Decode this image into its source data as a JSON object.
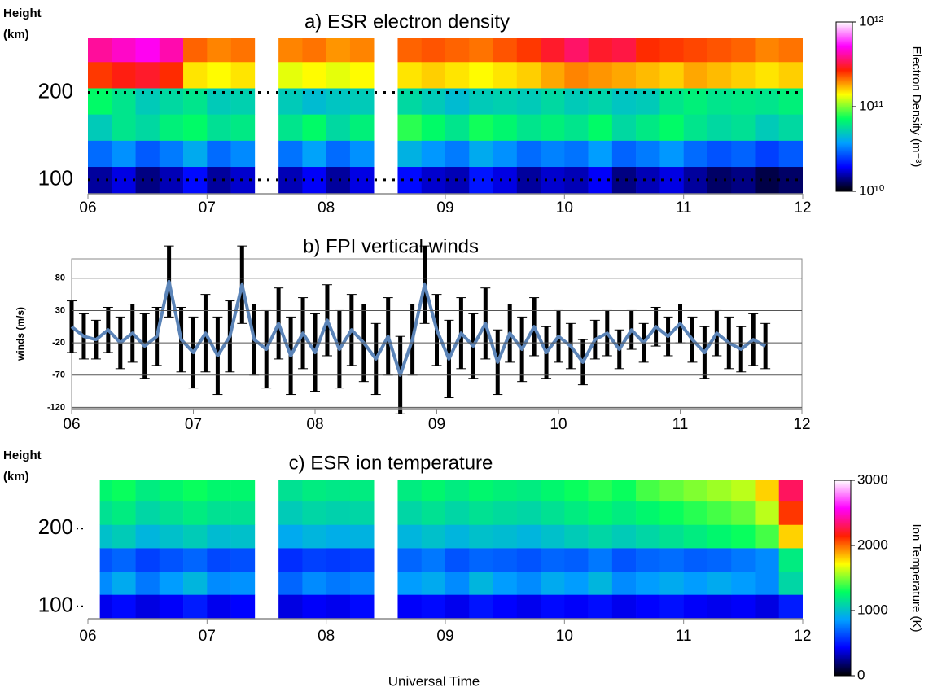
{
  "chart_data": [
    {
      "type": "heatmap",
      "title": "a) ESR electron density",
      "ylabel_lines": [
        "Height",
        "(km)"
      ],
      "x_edges": [
        6.0,
        6.2,
        6.4,
        6.6,
        6.8,
        7.0,
        7.2,
        7.4,
        7.6,
        7.8,
        8.0,
        8.2,
        8.4,
        8.6,
        8.8,
        9.0,
        9.2,
        9.4,
        9.6,
        9.8,
        10.0,
        10.2,
        10.4,
        10.6,
        10.8,
        11.0,
        11.2,
        11.4,
        11.6,
        11.8,
        12.0
      ],
      "y_edges": [
        84,
        115,
        145,
        175,
        205,
        235,
        262
      ],
      "z": [
        [
          15000000000.0,
          18000000000.0,
          14000000000.0,
          16000000000.0,
          20000000000.0,
          15000000000.0,
          17000000000.0,
          null,
          16000000000.0,
          19000000000.0,
          15000000000.0,
          18000000000.0,
          null,
          20000000000.0,
          17000000000.0,
          16000000000.0,
          21000000000.0,
          18000000000.0,
          15000000000.0,
          17000000000.0,
          16000000000.0,
          19000000000.0,
          14000000000.0,
          16000000000.0,
          18000000000.0,
          15000000000.0,
          13000000000.0,
          14000000000.0,
          12000000000.0,
          13000000000.0
        ],
        [
          30000000000.0,
          35000000000.0,
          28000000000.0,
          32000000000.0,
          40000000000.0,
          30000000000.0,
          34000000000.0,
          null,
          31000000000.0,
          38000000000.0,
          30000000000.0,
          35000000000.0,
          null,
          42000000000.0,
          36000000000.0,
          32000000000.0,
          40000000000.0,
          35000000000.0,
          30000000000.0,
          33000000000.0,
          31000000000.0,
          37000000000.0,
          29000000000.0,
          32000000000.0,
          36000000000.0,
          30000000000.0,
          27000000000.0,
          29000000000.0,
          25000000000.0,
          28000000000.0
        ],
        [
          50000000000.0,
          60000000000.0,
          55000000000.0,
          65000000000.0,
          70000000000.0,
          58000000000.0,
          62000000000.0,
          null,
          60000000000.0,
          70000000000.0,
          55000000000.0,
          65000000000.0,
          null,
          80000000000.0,
          70000000000.0,
          60000000000.0,
          75000000000.0,
          68000000000.0,
          60000000000.0,
          65000000000.0,
          60000000000.0,
          70000000000.0,
          55000000000.0,
          62000000000.0,
          70000000000.0,
          60000000000.0,
          55000000000.0,
          58000000000.0,
          50000000000.0,
          55000000000.0
        ],
        [
          70000000000.0,
          60000000000.0,
          50000000000.0,
          55000000000.0,
          60000000000.0,
          50000000000.0,
          52000000000.0,
          null,
          50000000000.0,
          45000000000.0,
          48000000000.0,
          50000000000.0,
          null,
          55000000000.0,
          50000000000.0,
          45000000000.0,
          50000000000.0,
          52000000000.0,
          50000000000.0,
          55000000000.0,
          50000000000.0,
          53000000000.0,
          48000000000.0,
          50000000000.0,
          60000000000.0,
          65000000000.0,
          60000000000.0,
          62000000000.0,
          60000000000.0,
          65000000000.0
        ],
        [
          250000000000.0,
          280000000000.0,
          300000000000.0,
          260000000000.0,
          150000000000.0,
          140000000000.0,
          150000000000.0,
          null,
          130000000000.0,
          140000000000.0,
          130000000000.0,
          140000000000.0,
          null,
          150000000000.0,
          160000000000.0,
          150000000000.0,
          140000000000.0,
          150000000000.0,
          160000000000.0,
          180000000000.0,
          200000000000.0,
          190000000000.0,
          180000000000.0,
          170000000000.0,
          160000000000.0,
          180000000000.0,
          170000000000.0,
          160000000000.0,
          150000000000.0,
          160000000000.0
        ],
        [
          400000000000.0,
          450000000000.0,
          500000000000.0,
          420000000000.0,
          220000000000.0,
          200000000000.0,
          210000000000.0,
          null,
          200000000000.0,
          210000000000.0,
          190000000000.0,
          200000000000.0,
          null,
          220000000000.0,
          230000000000.0,
          220000000000.0,
          210000000000.0,
          230000000000.0,
          250000000000.0,
          300000000000.0,
          350000000000.0,
          300000000000.0,
          320000000000.0,
          260000000000.0,
          250000000000.0,
          240000000000.0,
          230000000000.0,
          220000000000.0,
          200000000000.0,
          210000000000.0
        ]
      ],
      "xlim": [
        6,
        12
      ],
      "xticks": [
        {
          "value": 6,
          "label": "06"
        },
        {
          "value": 7,
          "label": "07"
        },
        {
          "value": 8,
          "label": "08"
        },
        {
          "value": 9,
          "label": "09"
        },
        {
          "value": 10,
          "label": "10"
        },
        {
          "value": 11,
          "label": "11"
        },
        {
          "value": 12,
          "label": "12"
        }
      ],
      "ylim": [
        84,
        262
      ],
      "yticks": [
        100,
        200
      ],
      "grid": true,
      "colorbar_label": "Electron Density (m⁻³)",
      "clim": [
        10000000000.0,
        1000000000000.0
      ],
      "color_log": true,
      "cticks": [
        {
          "value": 10000000000.0,
          "label": "10¹⁰"
        },
        {
          "value": 100000000000.0,
          "label": "10¹¹"
        },
        {
          "value": 1000000000000.0,
          "label": "10¹²"
        }
      ],
      "colorscale": [
        "#000000",
        "#0000ff",
        "#00a0ff",
        "#00ff60",
        "#ffff00",
        "#ff2000",
        "#ff00ff",
        "#ffffff"
      ]
    },
    {
      "type": "errorline",
      "title": "b) FPI vertical winds",
      "ylabel": "winds (m/s)",
      "x": [
        6.0,
        6.1,
        6.2,
        6.3,
        6.4,
        6.5,
        6.6,
        6.7,
        6.8,
        6.9,
        7.0,
        7.1,
        7.2,
        7.3,
        7.4,
        7.5,
        7.6,
        7.7,
        7.8,
        7.9,
        8.0,
        8.1,
        8.2,
        8.3,
        8.4,
        8.5,
        8.6,
        8.7,
        8.8,
        8.9,
        9.0,
        9.1,
        9.2,
        9.3,
        9.4,
        9.5,
        9.6,
        9.7,
        9.8,
        9.9,
        10.0,
        10.1,
        10.2,
        10.3,
        10.4,
        10.5,
        10.6,
        10.7,
        10.8,
        10.9,
        11.0,
        11.1,
        11.2,
        11.3,
        11.4,
        11.5,
        11.6,
        11.7
      ],
      "values": [
        5,
        -10,
        -15,
        0,
        -20,
        -5,
        -25,
        -10,
        75,
        -15,
        -35,
        -5,
        -40,
        -10,
        70,
        -15,
        -30,
        10,
        -40,
        -5,
        -35,
        15,
        -30,
        0,
        -20,
        -45,
        -10,
        -70,
        -15,
        70,
        0,
        -45,
        -5,
        -25,
        10,
        -50,
        -5,
        -30,
        5,
        -35,
        -10,
        -25,
        -50,
        -15,
        -5,
        -30,
        0,
        -20,
        5,
        -10,
        10,
        -15,
        -35,
        -5,
        -20,
        -30,
        -15,
        -25
      ],
      "errors": [
        40,
        35,
        30,
        35,
        40,
        45,
        50,
        45,
        55,
        50,
        55,
        60,
        60,
        55,
        60,
        55,
        60,
        55,
        60,
        55,
        60,
        55,
        60,
        55,
        60,
        55,
        60,
        60,
        55,
        60,
        55,
        60,
        55,
        50,
        55,
        50,
        45,
        50,
        45,
        40,
        40,
        35,
        35,
        30,
        35,
        30,
        30,
        30,
        30,
        30,
        30,
        35,
        40,
        35,
        40,
        35,
        40,
        35
      ],
      "color": "#5b84b8",
      "error_color": "#000000",
      "xlim": [
        6,
        12
      ],
      "xticks": [
        {
          "value": 6,
          "label": "06"
        },
        {
          "value": 7,
          "label": "07"
        },
        {
          "value": 8,
          "label": "08"
        },
        {
          "value": 9,
          "label": "09"
        },
        {
          "value": 10,
          "label": "10"
        },
        {
          "value": 11,
          "label": "11"
        },
        {
          "value": 12,
          "label": "12"
        }
      ],
      "ylim": [
        -122,
        110
      ],
      "yticks": [
        -120,
        -70,
        -20,
        30,
        80
      ],
      "grid": true
    },
    {
      "type": "heatmap",
      "title": "c) ESR ion temperature",
      "ylabel_lines": [
        "Height",
        "(km)"
      ],
      "xlabel": "Universal Time",
      "x_edges": [
        6.1,
        6.2,
        6.4,
        6.6,
        6.8,
        7.0,
        7.2,
        7.4,
        7.6,
        7.8,
        8.0,
        8.2,
        8.4,
        8.6,
        8.8,
        9.0,
        9.2,
        9.4,
        9.6,
        9.8,
        10.0,
        10.2,
        10.4,
        10.6,
        10.8,
        11.0,
        11.2,
        11.4,
        11.6,
        11.8,
        12.0
      ],
      "y_edges": [
        84,
        115,
        145,
        175,
        205,
        235,
        262
      ],
      "z": [
        [
          400,
          450,
          380,
          420,
          500,
          400,
          430,
          null,
          380,
          420,
          400,
          450,
          null,
          420,
          450,
          400,
          480,
          430,
          400,
          450,
          420,
          460,
          400,
          430,
          470,
          420,
          400,
          420,
          380,
          500
        ],
        [
          800,
          900,
          750,
          850,
          950,
          800,
          820,
          null,
          700,
          800,
          750,
          780,
          null,
          850,
          900,
          800,
          950,
          850,
          800,
          900,
          850,
          950,
          800,
          850,
          900,
          850,
          900,
          850,
          800,
          1100
        ],
        [
          650,
          700,
          600,
          650,
          700,
          620,
          640,
          null,
          550,
          600,
          580,
          600,
          null,
          700,
          750,
          650,
          700,
          680,
          650,
          700,
          680,
          750,
          650,
          700,
          720,
          680,
          700,
          750,
          800,
          1200
        ],
        [
          1000,
          1050,
          950,
          1000,
          1050,
          980,
          1000,
          null,
          900,
          950,
          920,
          940,
          null,
          950,
          1000,
          950,
          1000,
          980,
          950,
          1000,
          1050,
          1100,
          1050,
          1100,
          1150,
          1200,
          1250,
          1300,
          1400,
          1800
        ],
        [
          1150,
          1200,
          1100,
          1150,
          1200,
          1150,
          1150,
          null,
          1050,
          1100,
          1080,
          1100,
          null,
          1100,
          1150,
          1100,
          1150,
          1120,
          1100,
          1150,
          1200,
          1250,
          1200,
          1250,
          1300,
          1350,
          1400,
          1450,
          1600,
          2100
        ],
        [
          1250,
          1300,
          1200,
          1250,
          1300,
          1250,
          1250,
          null,
          1150,
          1200,
          1180,
          1200,
          null,
          1200,
          1250,
          1200,
          1250,
          1220,
          1200,
          1250,
          1300,
          1350,
          1300,
          1400,
          1450,
          1500,
          1550,
          1600,
          1800,
          2300
        ]
      ],
      "xlim": [
        6,
        12
      ],
      "xticks": [
        {
          "value": 6,
          "label": "06"
        },
        {
          "value": 7,
          "label": "07"
        },
        {
          "value": 8,
          "label": "08"
        },
        {
          "value": 9,
          "label": "09"
        },
        {
          "value": 10,
          "label": "10"
        },
        {
          "value": 11,
          "label": "11"
        },
        {
          "value": 12,
          "label": "12"
        }
      ],
      "ylim": [
        84,
        262
      ],
      "yticks": [
        100,
        200
      ],
      "grid": false,
      "colorbar_label": "Ion Temperature (K)",
      "clim": [
        0,
        3000
      ],
      "color_log": false,
      "cticks": [
        0,
        1000,
        2000,
        3000
      ],
      "colorscale": [
        "#000000",
        "#0000ff",
        "#00a0ff",
        "#00ff60",
        "#ffff00",
        "#ff2000",
        "#ff00ff",
        "#ffffff"
      ]
    }
  ]
}
